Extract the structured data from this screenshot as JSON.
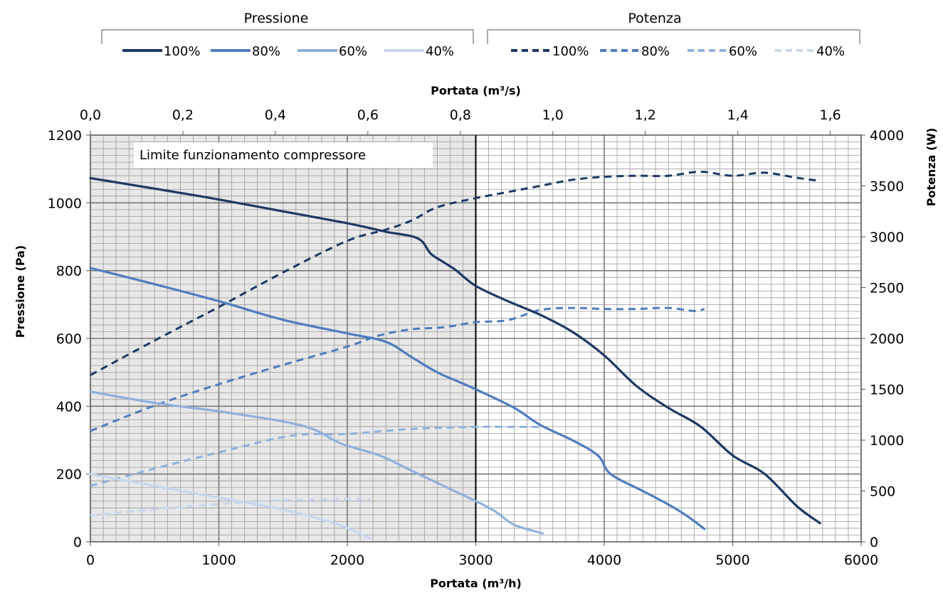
{
  "chart_data": {
    "type": "line",
    "legend_groups": [
      {
        "title": "Pressione",
        "style": "solid",
        "entries": [
          "100%",
          "80%",
          "60%",
          "40%"
        ]
      },
      {
        "title": "Potenza",
        "style": "dashed",
        "entries": [
          "100%",
          "80%",
          "60%",
          "40%"
        ]
      }
    ],
    "axes": {
      "x_bottom": {
        "label": "Portata (m³/h)",
        "range": [
          0,
          6000
        ],
        "ticks": [
          0,
          1000,
          2000,
          3000,
          4000,
          5000,
          6000
        ],
        "tick_labels": [
          "0",
          "1000",
          "2000",
          "3000",
          "4000",
          "5000",
          "6000"
        ]
      },
      "x_top": {
        "label": "Portata (m³/s)",
        "range": [
          0,
          1.6667
        ],
        "ticks": [
          0,
          0.2,
          0.4,
          0.6,
          0.8,
          1.0,
          1.2,
          1.4,
          1.6
        ],
        "tick_labels": [
          "0,0",
          "0,2",
          "0,4",
          "0,6",
          "0,8",
          "1,0",
          "1,2",
          "1,4",
          "1,6"
        ]
      },
      "y_left": {
        "label": "Pressione (Pa)",
        "range": [
          0,
          1200
        ],
        "ticks": [
          0,
          200,
          400,
          600,
          800,
          1000,
          1200
        ],
        "tick_labels": [
          "0",
          "200",
          "400",
          "600",
          "800",
          "1000",
          "1200"
        ]
      },
      "y_right": {
        "label": "Potenza (W)",
        "range": [
          0,
          4000
        ],
        "ticks": [
          0,
          500,
          1000,
          1500,
          2000,
          2500,
          3000,
          3500,
          4000
        ],
        "tick_labels": [
          "0",
          "500",
          "1000",
          "1500",
          "2000",
          "2500",
          "3000",
          "3500",
          "4000"
        ]
      }
    },
    "grid": true,
    "shaded_region": {
      "x_from": 0,
      "x_to": 3000,
      "label": "Limite funzionamento compressore"
    },
    "vertical_line_x": 3000,
    "colors": {
      "100%": "#1f3864",
      "80%": "#4f7cc0",
      "60%": "#8fb0dc",
      "40%": "#c6d7ee"
    },
    "pressure_series": [
      {
        "name": "100%",
        "axis": "left",
        "x": [
          0,
          500,
          1000,
          1500,
          2000,
          2300,
          2550,
          2650,
          2750,
          2850,
          3000,
          3250,
          3500,
          3750,
          4000,
          4250,
          4500,
          4750,
          5000,
          5250,
          5500,
          5680
        ],
        "y": [
          1073,
          1042,
          1010,
          975,
          940,
          915,
          895,
          850,
          825,
          800,
          755,
          710,
          670,
          620,
          550,
          460,
          395,
          340,
          255,
          200,
          105,
          55
        ]
      },
      {
        "name": "80%",
        "axis": "left",
        "x": [
          0,
          500,
          1000,
          1500,
          2000,
          2300,
          2500,
          2700,
          2850,
          3000,
          3300,
          3500,
          3750,
          3950,
          4050,
          4300,
          4500,
          4650,
          4780
        ],
        "y": [
          808,
          760,
          710,
          655,
          615,
          590,
          545,
          500,
          475,
          450,
          395,
          345,
          300,
          255,
          200,
          150,
          110,
          75,
          38
        ]
      },
      {
        "name": "60%",
        "axis": "left",
        "x": [
          0,
          500,
          1000,
          1500,
          1750,
          1950,
          2250,
          2500,
          2750,
          3000,
          3150,
          3300,
          3520
        ],
        "y": [
          443,
          410,
          385,
          355,
          330,
          290,
          255,
          210,
          165,
          120,
          90,
          50,
          25
        ]
      },
      {
        "name": "40%",
        "axis": "left",
        "x": [
          0,
          500,
          1000,
          1500,
          1900,
          2180
        ],
        "y": [
          200,
          165,
          130,
          95,
          55,
          10
        ]
      }
    ],
    "power_series": [
      {
        "name": "100%",
        "axis": "right",
        "x": [
          0,
          500,
          1000,
          1500,
          2000,
          2300,
          2500,
          2700,
          3000,
          3250,
          3500,
          3750,
          4000,
          4250,
          4500,
          4750,
          5000,
          5250,
          5500,
          5680
        ],
        "y": [
          1640,
          1980,
          2310,
          2650,
          2960,
          3070,
          3160,
          3290,
          3380,
          3440,
          3500,
          3560,
          3590,
          3600,
          3600,
          3640,
          3600,
          3630,
          3580,
          3550
        ]
      },
      {
        "name": "80%",
        "axis": "right",
        "x": [
          0,
          500,
          1000,
          1500,
          2000,
          2250,
          2500,
          2750,
          3000,
          3250,
          3500,
          3750,
          4000,
          4250,
          4500,
          4700,
          4780
        ],
        "y": [
          1090,
          1340,
          1550,
          1740,
          1920,
          2030,
          2090,
          2110,
          2160,
          2180,
          2280,
          2300,
          2290,
          2290,
          2300,
          2270,
          2290
        ]
      },
      {
        "name": "60%",
        "axis": "right",
        "x": [
          0,
          500,
          1000,
          1500,
          1750,
          2000,
          2500,
          3000,
          3250,
          3520
        ],
        "y": [
          550,
          720,
          880,
          1030,
          1060,
          1060,
          1110,
          1130,
          1130,
          1130
        ]
      },
      {
        "name": "40%",
        "axis": "right",
        "x": [
          0,
          500,
          1000,
          1500,
          2000,
          2180
        ],
        "y": [
          260,
          320,
          370,
          410,
          420,
          420
        ]
      }
    ]
  }
}
